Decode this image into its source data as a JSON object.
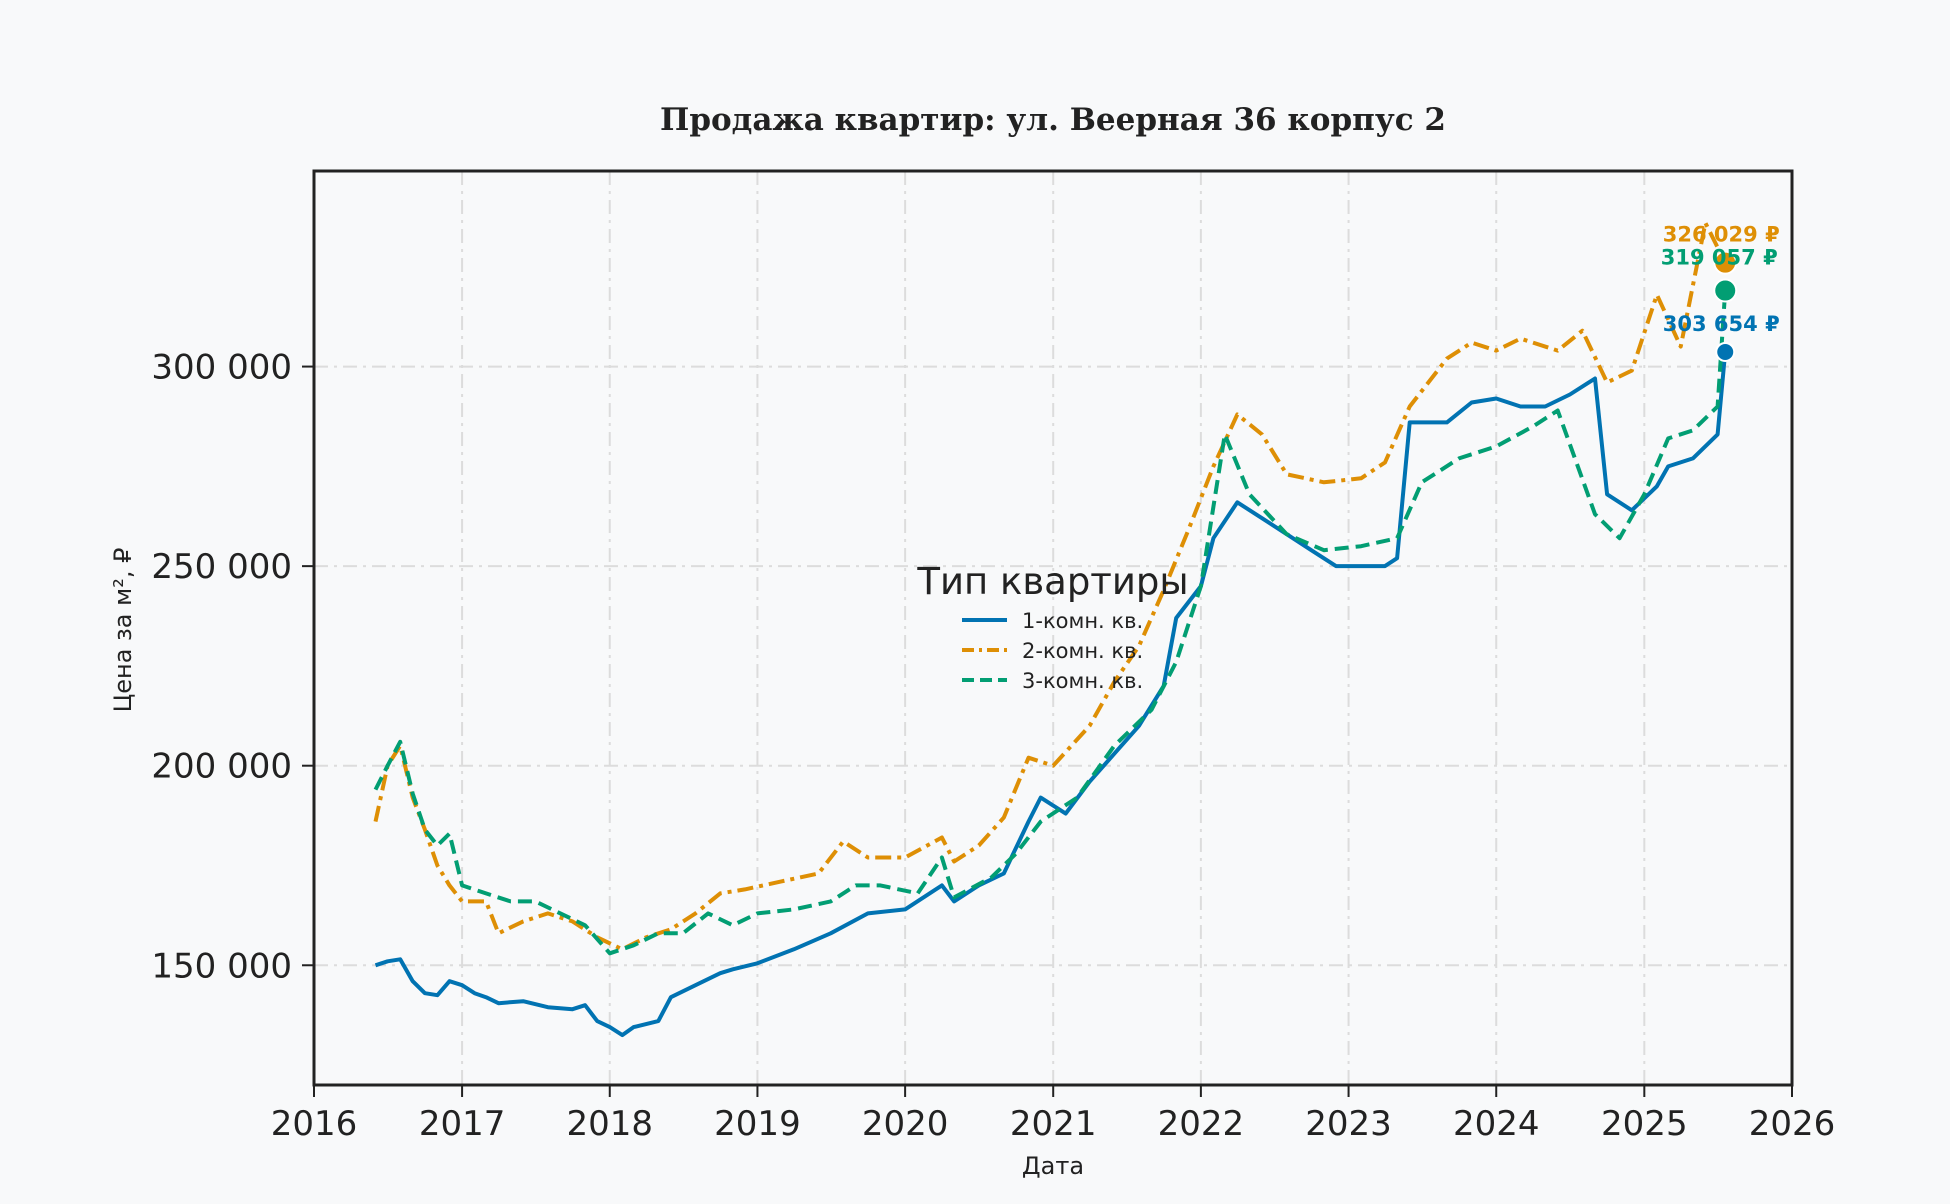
{
  "chart_data": {
    "type": "line",
    "title": "Продажа квартир: ул. Веерная 36 корпус 2",
    "xlabel": "Дата",
    "ylabel": "Цена за м², ₽",
    "xlim": [
      "2016-01-01",
      "2026-01-01"
    ],
    "ylim": [
      120000,
      349000
    ],
    "xticks": [
      "2016",
      "2017",
      "2018",
      "2019",
      "2020",
      "2021",
      "2022",
      "2023",
      "2024",
      "2025",
      "2026"
    ],
    "yticks": [
      150000,
      200000,
      250000,
      300000
    ],
    "ytick_labels": [
      "150 000",
      "200 000",
      "250 000",
      "300 000"
    ],
    "grid": true,
    "legend": {
      "title": "Тип квартиры",
      "placement": "center"
    },
    "series": [
      {
        "name": "1-комн. кв.",
        "color": "#0173b2",
        "style": "solid",
        "points": [
          [
            "2016-06-01",
            150000
          ],
          [
            "2016-07-01",
            151000
          ],
          [
            "2016-08-01",
            151500
          ],
          [
            "2016-09-01",
            146000
          ],
          [
            "2016-10-01",
            143000
          ],
          [
            "2016-11-01",
            142500
          ],
          [
            "2016-12-01",
            146000
          ],
          [
            "2017-01-01",
            145000
          ],
          [
            "2017-02-01",
            143000
          ],
          [
            "2017-03-01",
            142000
          ],
          [
            "2017-04-01",
            140500
          ],
          [
            "2017-06-01",
            141000
          ],
          [
            "2017-08-01",
            139500
          ],
          [
            "2017-10-01",
            139000
          ],
          [
            "2017-11-01",
            140000
          ],
          [
            "2017-12-01",
            136000
          ],
          [
            "2018-01-01",
            134500
          ],
          [
            "2018-02-01",
            132500
          ],
          [
            "2018-03-01",
            134500
          ],
          [
            "2018-05-01",
            136000
          ],
          [
            "2018-06-01",
            142000
          ],
          [
            "2018-08-01",
            145000
          ],
          [
            "2018-10-01",
            148000
          ],
          [
            "2018-11-01",
            149000
          ],
          [
            "2019-01-01",
            150500
          ],
          [
            "2019-04-01",
            154000
          ],
          [
            "2019-07-01",
            158000
          ],
          [
            "2019-10-01",
            163000
          ],
          [
            "2020-01-01",
            164000
          ],
          [
            "2020-04-01",
            170000
          ],
          [
            "2020-05-01",
            166000
          ],
          [
            "2020-07-01",
            170000
          ],
          [
            "2020-09-01",
            173000
          ],
          [
            "2020-11-01",
            186000
          ],
          [
            "2020-12-01",
            192000
          ],
          [
            "2021-02-01",
            188000
          ],
          [
            "2021-04-01",
            196000
          ],
          [
            "2021-06-01",
            203000
          ],
          [
            "2021-08-01",
            210000
          ],
          [
            "2021-10-01",
            220000
          ],
          [
            "2021-11-01",
            237000
          ],
          [
            "2022-01-01",
            245000
          ],
          [
            "2022-02-01",
            257000
          ],
          [
            "2022-04-01",
            266000
          ],
          [
            "2022-06-01",
            262000
          ],
          [
            "2022-08-01",
            258000
          ],
          [
            "2022-10-01",
            254000
          ],
          [
            "2022-12-01",
            250000
          ],
          [
            "2023-02-01",
            250000
          ],
          [
            "2023-04-01",
            250000
          ],
          [
            "2023-05-01",
            252000
          ],
          [
            "2023-06-01",
            286000
          ],
          [
            "2023-09-01",
            286000
          ],
          [
            "2023-11-01",
            291000
          ],
          [
            "2024-01-01",
            292000
          ],
          [
            "2024-03-01",
            290000
          ],
          [
            "2024-05-01",
            290000
          ],
          [
            "2024-07-01",
            293000
          ],
          [
            "2024-09-01",
            297000
          ],
          [
            "2024-10-01",
            268000
          ],
          [
            "2024-12-01",
            264000
          ],
          [
            "2025-02-01",
            270000
          ],
          [
            "2025-03-01",
            275000
          ],
          [
            "2025-05-01",
            277000
          ],
          [
            "2025-07-01",
            283000
          ],
          [
            "2025-07-20",
            303654
          ]
        ],
        "last_value": 303654,
        "last_label": "303 654 ₽"
      },
      {
        "name": "2-комн. кв.",
        "color": "#de8f05",
        "style": "dashdot",
        "points": [
          [
            "2016-06-01",
            186000
          ],
          [
            "2016-07-01",
            200000
          ],
          [
            "2016-08-01",
            205000
          ],
          [
            "2016-09-01",
            192000
          ],
          [
            "2016-10-01",
            184000
          ],
          [
            "2016-11-01",
            175000
          ],
          [
            "2016-12-01",
            170000
          ],
          [
            "2017-01-01",
            166000
          ],
          [
            "2017-03-01",
            166000
          ],
          [
            "2017-04-01",
            158000
          ],
          [
            "2017-06-01",
            161000
          ],
          [
            "2017-08-01",
            163000
          ],
          [
            "2017-10-01",
            161000
          ],
          [
            "2017-12-01",
            157000
          ],
          [
            "2018-02-01",
            154000
          ],
          [
            "2018-04-01",
            157000
          ],
          [
            "2018-06-01",
            159000
          ],
          [
            "2018-08-01",
            163000
          ],
          [
            "2018-10-01",
            168000
          ],
          [
            "2018-12-01",
            169000
          ],
          [
            "2019-03-01",
            171000
          ],
          [
            "2019-06-01",
            173000
          ],
          [
            "2019-08-01",
            181000
          ],
          [
            "2019-10-01",
            177000
          ],
          [
            "2020-01-01",
            177000
          ],
          [
            "2020-04-01",
            182000
          ],
          [
            "2020-05-01",
            176000
          ],
          [
            "2020-07-01",
            180000
          ],
          [
            "2020-09-01",
            187000
          ],
          [
            "2020-11-01",
            202000
          ],
          [
            "2021-01-01",
            200000
          ],
          [
            "2021-04-01",
            210000
          ],
          [
            "2021-06-01",
            221000
          ],
          [
            "2021-08-01",
            230000
          ],
          [
            "2021-10-01",
            244000
          ],
          [
            "2021-12-01",
            259000
          ],
          [
            "2022-02-01",
            275000
          ],
          [
            "2022-04-01",
            288000
          ],
          [
            "2022-06-01",
            283000
          ],
          [
            "2022-08-01",
            273000
          ],
          [
            "2022-11-01",
            271000
          ],
          [
            "2023-02-01",
            272000
          ],
          [
            "2023-04-01",
            276000
          ],
          [
            "2023-06-01",
            290000
          ],
          [
            "2023-09-01",
            302000
          ],
          [
            "2023-11-01",
            306000
          ],
          [
            "2024-01-01",
            304000
          ],
          [
            "2024-03-01",
            307000
          ],
          [
            "2024-06-01",
            304000
          ],
          [
            "2024-08-01",
            309000
          ],
          [
            "2024-10-01",
            296000
          ],
          [
            "2024-12-01",
            299000
          ],
          [
            "2025-02-01",
            318000
          ],
          [
            "2025-04-01",
            305000
          ],
          [
            "2025-06-01",
            336000
          ],
          [
            "2025-07-20",
            326029
          ]
        ],
        "last_value": 326029,
        "last_label": "326 029 ₽"
      },
      {
        "name": "3-комн. кв.",
        "color": "#029e73",
        "style": "dashed",
        "points": [
          [
            "2016-06-01",
            194000
          ],
          [
            "2016-07-01",
            200000
          ],
          [
            "2016-08-01",
            206000
          ],
          [
            "2016-09-01",
            193000
          ],
          [
            "2016-10-01",
            184000
          ],
          [
            "2016-11-01",
            180000
          ],
          [
            "2016-12-01",
            183000
          ],
          [
            "2017-01-01",
            170000
          ],
          [
            "2017-03-01",
            168000
          ],
          [
            "2017-05-01",
            166000
          ],
          [
            "2017-07-01",
            166000
          ],
          [
            "2017-09-01",
            163000
          ],
          [
            "2017-11-01",
            160000
          ],
          [
            "2018-01-01",
            153000
          ],
          [
            "2018-03-01",
            155000
          ],
          [
            "2018-05-01",
            158000
          ],
          [
            "2018-07-01",
            158000
          ],
          [
            "2018-09-01",
            163000
          ],
          [
            "2018-11-01",
            160000
          ],
          [
            "2019-01-01",
            163000
          ],
          [
            "2019-04-01",
            164000
          ],
          [
            "2019-07-01",
            166000
          ],
          [
            "2019-09-01",
            170000
          ],
          [
            "2019-11-01",
            170000
          ],
          [
            "2020-02-01",
            168000
          ],
          [
            "2020-04-01",
            177000
          ],
          [
            "2020-05-01",
            167000
          ],
          [
            "2020-08-01",
            172000
          ],
          [
            "2020-10-01",
            178000
          ],
          [
            "2020-12-01",
            186000
          ],
          [
            "2021-03-01",
            192000
          ],
          [
            "2021-06-01",
            205000
          ],
          [
            "2021-09-01",
            214000
          ],
          [
            "2021-11-01",
            226000
          ],
          [
            "2022-01-01",
            245000
          ],
          [
            "2022-03-01",
            283000
          ],
          [
            "2022-05-01",
            268000
          ],
          [
            "2022-08-01",
            258000
          ],
          [
            "2022-11-01",
            254000
          ],
          [
            "2023-02-01",
            255000
          ],
          [
            "2023-05-01",
            257000
          ],
          [
            "2023-07-01",
            271000
          ],
          [
            "2023-10-01",
            277000
          ],
          [
            "2024-01-01",
            280000
          ],
          [
            "2024-04-01",
            285000
          ],
          [
            "2024-06-01",
            289000
          ],
          [
            "2024-09-01",
            263000
          ],
          [
            "2024-11-01",
            257000
          ],
          [
            "2025-01-01",
            268000
          ],
          [
            "2025-03-01",
            282000
          ],
          [
            "2025-05-01",
            284000
          ],
          [
            "2025-07-01",
            290000
          ],
          [
            "2025-07-20",
            319057
          ]
        ],
        "last_value": 319057,
        "last_label": "319 057 ₽"
      }
    ]
  }
}
